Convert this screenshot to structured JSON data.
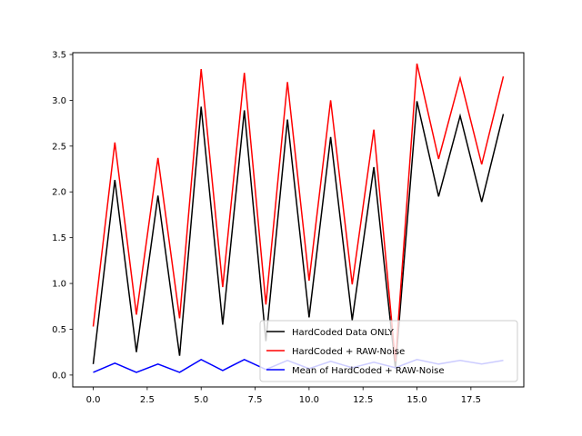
{
  "chart_data": {
    "type": "line",
    "title": "",
    "xlabel": "",
    "ylabel": "",
    "xlim": [
      -0.95,
      19.95
    ],
    "ylim": [
      -0.13,
      3.52
    ],
    "grid": false,
    "legend_position": "lower right",
    "x": [
      0,
      1,
      2,
      3,
      4,
      5,
      6,
      7,
      8,
      9,
      10,
      11,
      12,
      13,
      14,
      15,
      16,
      17,
      18,
      19
    ],
    "x_ticks": [
      0.0,
      2.5,
      5.0,
      7.5,
      10.0,
      12.5,
      15.0,
      17.5
    ],
    "x_tick_labels": [
      "0.0",
      "2.5",
      "5.0",
      "7.5",
      "10.0",
      "12.5",
      "15.0",
      "17.5"
    ],
    "y_ticks": [
      0.0,
      0.5,
      1.0,
      1.5,
      2.0,
      2.5,
      3.0,
      3.5
    ],
    "y_tick_labels": [
      "0.0",
      "0.5",
      "1.0",
      "1.5",
      "2.0",
      "2.5",
      "3.0",
      "3.5"
    ],
    "series": [
      {
        "name": "HardCoded Data ONLY",
        "color": "#000000",
        "values": [
          0.12,
          2.13,
          0.25,
          1.96,
          0.21,
          2.93,
          0.55,
          2.89,
          0.37,
          2.79,
          0.63,
          2.6,
          0.6,
          2.27,
          0.07,
          2.99,
          1.95,
          2.83,
          1.89,
          2.85
        ]
      },
      {
        "name": "HardCoded + RAW-Noise",
        "color": "#ff0000",
        "values": [
          0.53,
          2.54,
          0.66,
          2.37,
          0.62,
          3.34,
          0.96,
          3.3,
          0.77,
          3.2,
          1.03,
          3.0,
          0.99,
          2.68,
          0.15,
          3.4,
          2.36,
          3.24,
          2.3,
          3.26
        ]
      },
      {
        "name": "Mean of HardCoded + RAW-Noise",
        "color": "#0000ff",
        "values": [
          0.03,
          0.13,
          0.03,
          0.12,
          0.03,
          0.17,
          0.05,
          0.17,
          0.06,
          0.16,
          0.07,
          0.15,
          0.08,
          0.14,
          0.08,
          0.17,
          0.12,
          0.16,
          0.12,
          0.16
        ]
      }
    ]
  },
  "legend": {
    "items": [
      {
        "label": "HardCoded Data ONLY",
        "color": "#000000"
      },
      {
        "label": "HardCoded + RAW-Noise",
        "color": "#ff0000"
      },
      {
        "label": "Mean of HardCoded + RAW-Noise",
        "color": "#0000ff"
      }
    ]
  }
}
